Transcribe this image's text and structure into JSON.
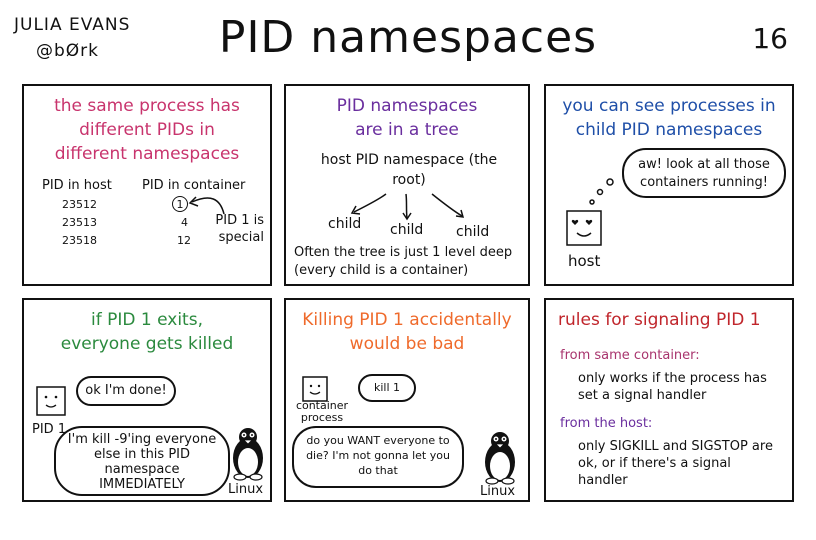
{
  "header": {
    "author_line1": "JULIA EVANS",
    "author_line2": "@bØrk",
    "title": "PID namespaces",
    "page_number": "16"
  },
  "panel1": {
    "title": "the same process has different PIDs in different namespaces",
    "title_color": "#c8346d",
    "col_host": "PID in host",
    "col_container": "PID in container",
    "rows": [
      {
        "host": "23512",
        "container": "1"
      },
      {
        "host": "23513",
        "container": "4"
      },
      {
        "host": "23518",
        "container": "12"
      }
    ],
    "note": "PID 1 is special"
  },
  "panel2": {
    "title": "PID namespaces are in a tree",
    "title_color": "#6a2e9e",
    "root_label": "host PID namespace (the root)",
    "children": [
      "child",
      "child",
      "child"
    ],
    "note": "Often the tree is just 1 level deep (every child is a container)"
  },
  "panel3": {
    "title": "you can see processes in child PID namespaces",
    "title_color": "#1f4fa8",
    "thought": "aw! look at all those containers running!",
    "host_label": "host"
  },
  "panel4": {
    "title": "if PID 1 exits, everyone gets killed",
    "title_color": "#2b8a3e",
    "pid1_speech": "ok I'm done!",
    "pid1_label": "PID 1",
    "linux_speech": "I'm kill -9'ing everyone else in this PID namespace IMMEDIATELY",
    "linux_label": "Linux"
  },
  "panel5": {
    "title": "Killing PID 1 accidentally would be bad",
    "title_color": "#ef6a2b",
    "container_speech": "kill 1",
    "container_label": "container process",
    "linux_speech": "do you WANT everyone to die? I'm not gonna let you do that",
    "linux_label": "Linux"
  },
  "panel6": {
    "title": "rules for signaling PID 1",
    "title_color": "#c0252b",
    "heading1": "from same container:",
    "heading_color": "#a8346d",
    "rule1": "only works if the process has set a signal handler",
    "heading2": "from the host:",
    "heading2_color": "#6a2e9e",
    "rule2": "only SIGKILL and SIGSTOP are ok, or if there's a signal handler"
  }
}
